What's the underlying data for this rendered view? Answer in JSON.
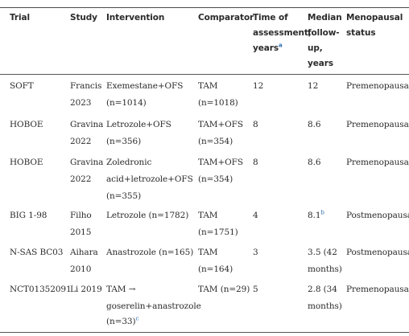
{
  "headers": {
    "trial": "Trial",
    "study": "Study",
    "intervention": "Intervention",
    "comparator": "Comparator",
    "time_line1": "Time of",
    "time_line2": "assessment,",
    "time_line3": "years",
    "time_sup": "a",
    "median_line1": "Median",
    "median_line2": "follow-",
    "median_line3": "up,",
    "median_line4": "years",
    "meno_line1": "Menopausal",
    "meno_line2": "status"
  },
  "rows": [
    {
      "trial": "SOFT",
      "study1": "Francis",
      "study2": "2023",
      "int1": "Exemestane+OFS",
      "int2": "(n=1014)",
      "comp1": "TAM",
      "comp2": "(n=1018)",
      "time": "12",
      "median1": "12",
      "meno": "Premenopausal"
    },
    {
      "trial": "HOBOE",
      "study1": "Gravina",
      "study2": "2022",
      "int1": "Letrozole+OFS",
      "int2": "(n=356)",
      "comp1": "TAM+OFS",
      "comp2": "(n=354)",
      "time": "8",
      "median1": "8.6",
      "meno": "Premenopausal"
    },
    {
      "trial": "HOBOE",
      "study1": "Gravina",
      "study2": "2022",
      "int1": "Zoledronic",
      "int2": "acid+letrozole+OFS",
      "int3": "(n=355)",
      "comp1": "TAM+OFS",
      "comp2": "(n=354)",
      "time": "8",
      "median1": "8.6",
      "meno": "Premenopausal"
    },
    {
      "trial": "BIG 1-98",
      "study1": "Filho",
      "study2": "2015",
      "int1": "Letrozole (n=1782)",
      "comp1": "TAM",
      "comp2": "(n=1751)",
      "time": "4",
      "median1": "8.1",
      "median_sup": "b",
      "meno": "Postmenopausal"
    },
    {
      "trial": "N-SAS BC03",
      "study1": "Aihara",
      "study2": "2010",
      "int1": "Anastrozole (n=165)",
      "comp1": "TAM",
      "comp2": "(n=164)",
      "time": "3",
      "median1": "3.5 (42",
      "median2": "months)",
      "meno": "Postmenopausal"
    },
    {
      "trial": "NCT01352091",
      "study1": "Li 2019",
      "int1": "TAM →",
      "int2": "goserelin+anastrozole",
      "int3": "(n=33)",
      "int_sup": "c",
      "comp1": "TAM (n=29)",
      "time": "5",
      "median1": "2.8 (34",
      "median2": "months)",
      "meno": "Premenopausal"
    }
  ]
}
